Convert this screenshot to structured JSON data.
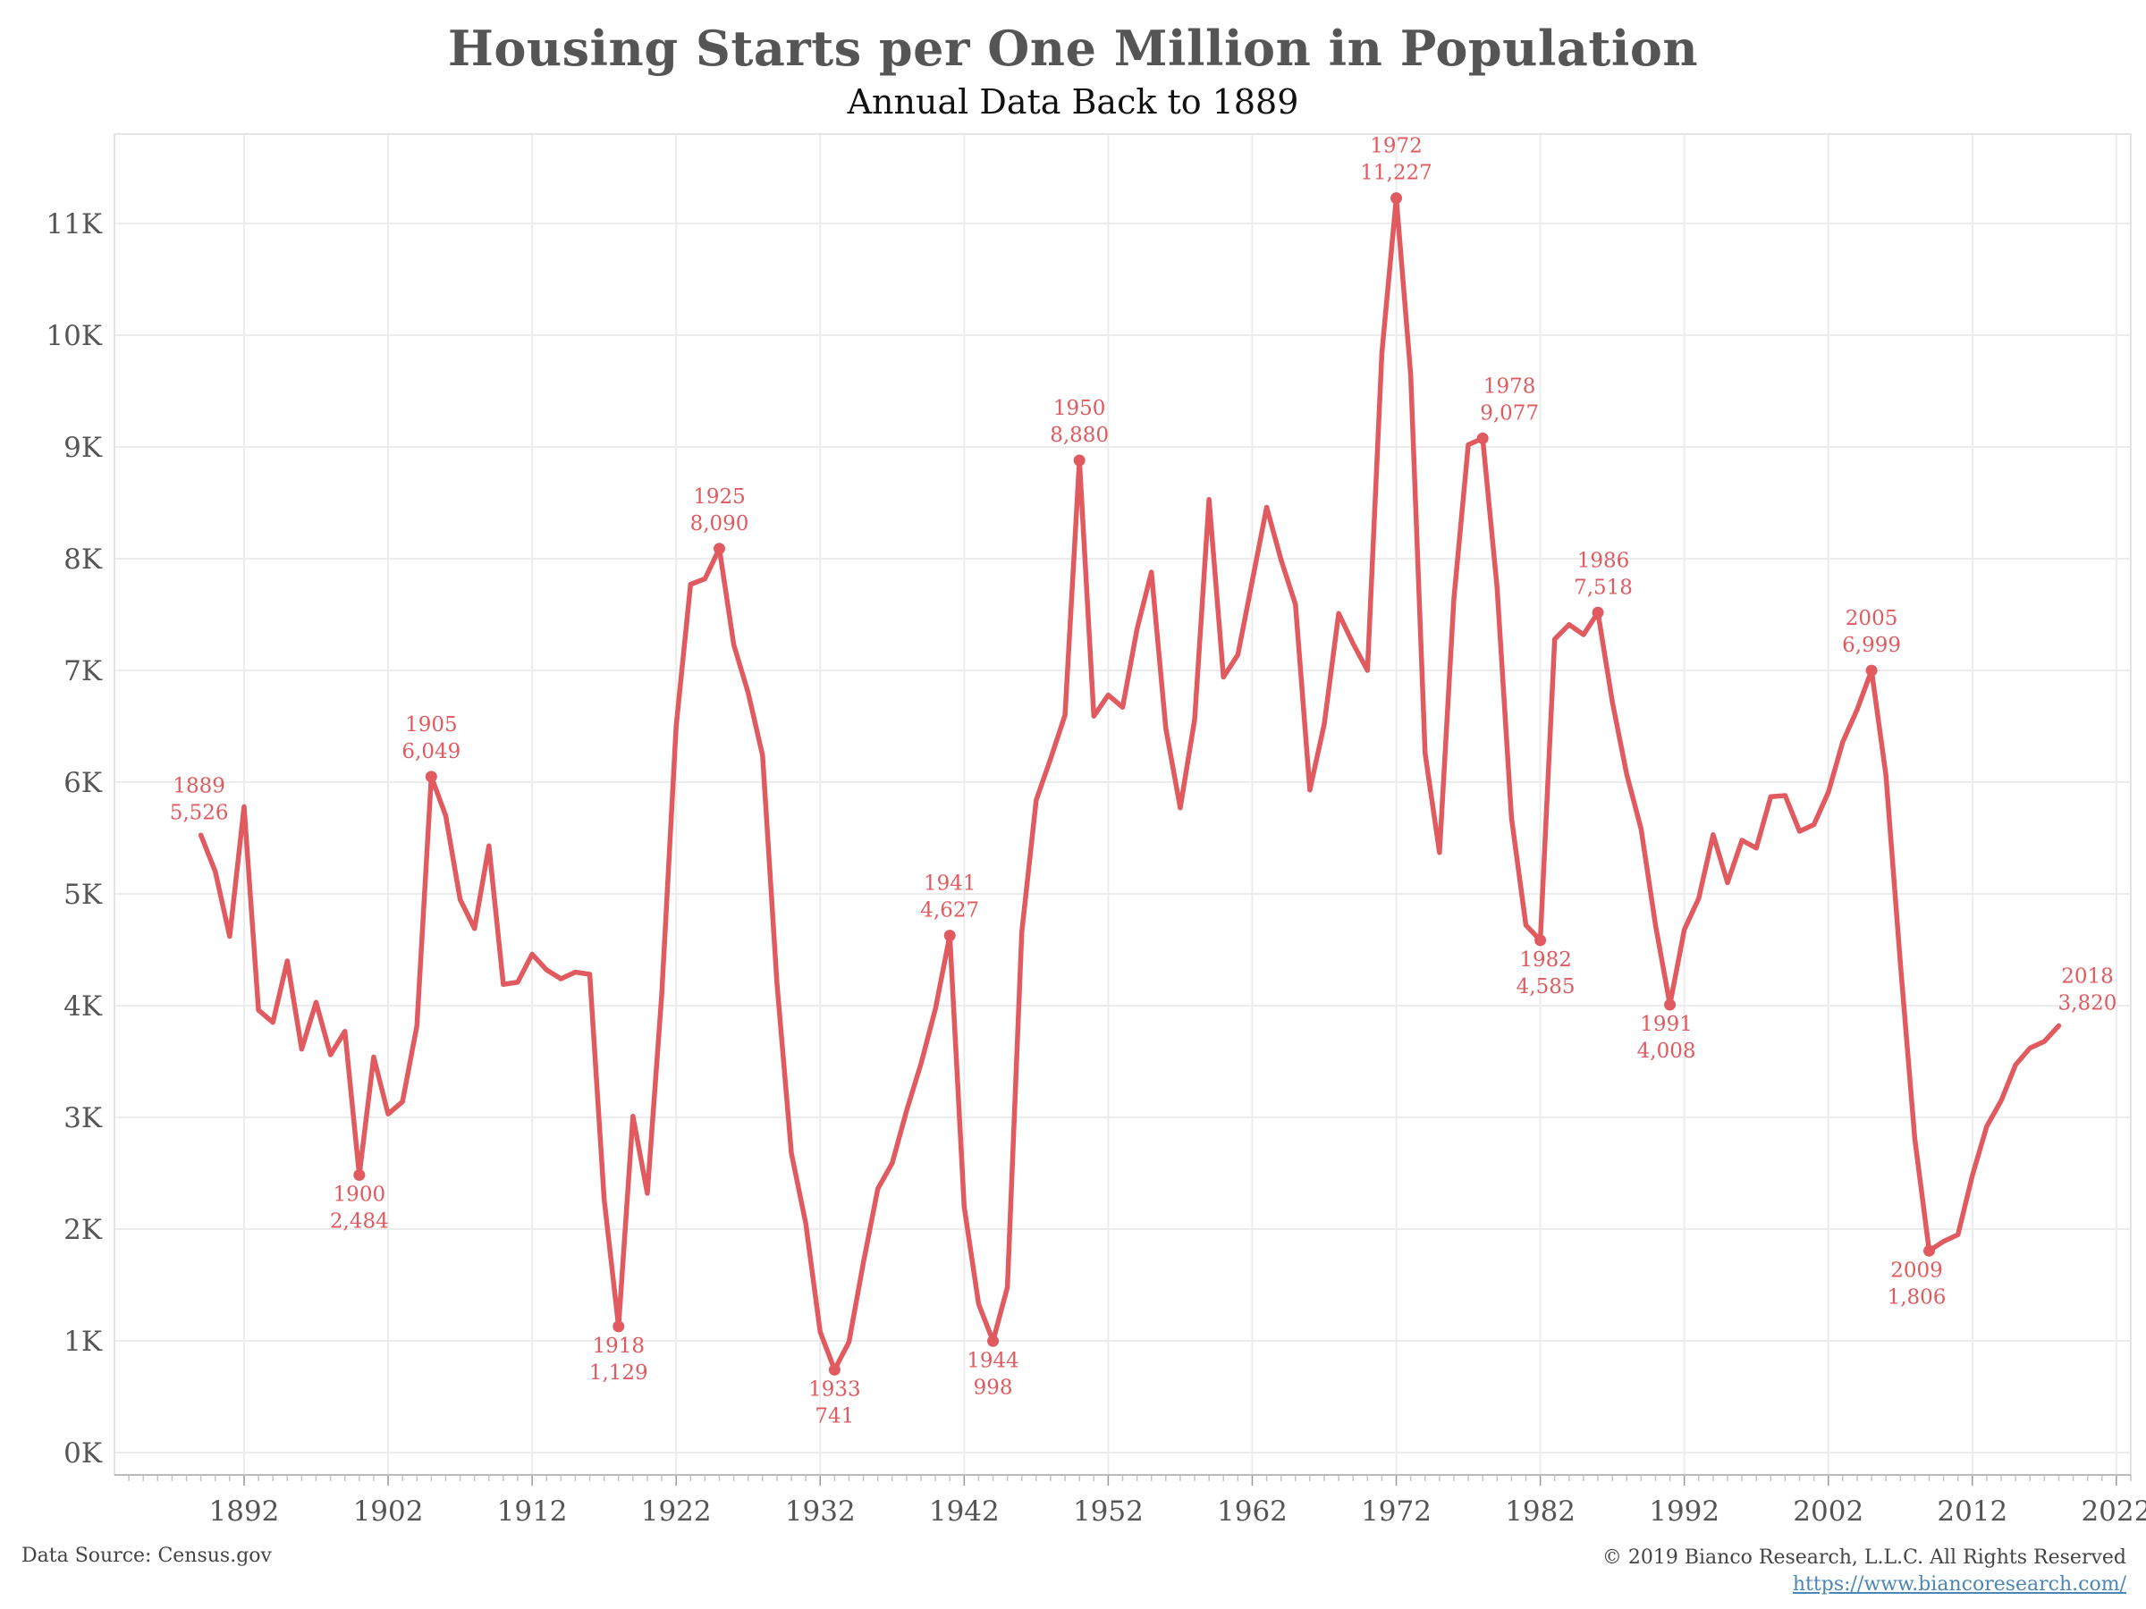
{
  "chart_data": {
    "type": "line",
    "title": "Housing Starts per One Million in Population",
    "subtitle": "Annual Data Back to 1889",
    "xlabel": "",
    "ylabel": "",
    "xlim": [
      1883,
      2023
    ],
    "ylim": [
      -200,
      11800
    ],
    "y_ticks": [
      0,
      1000,
      2000,
      3000,
      4000,
      5000,
      6000,
      7000,
      8000,
      9000,
      10000,
      11000
    ],
    "y_tick_labels": [
      "0K",
      "1K",
      "2K",
      "3K",
      "4K",
      "5K",
      "6K",
      "7K",
      "8K",
      "9K",
      "10K",
      "11K"
    ],
    "x_ticks": [
      1892,
      1902,
      1912,
      1922,
      1932,
      1942,
      1952,
      1962,
      1972,
      1982,
      1992,
      2002,
      2012,
      2022
    ],
    "x_tick_labels": [
      "1892",
      "1902",
      "1912",
      "1922",
      "1932",
      "1942",
      "1952",
      "1962",
      "1972",
      "1982",
      "1992",
      "2002",
      "2012",
      "2022"
    ],
    "grid": true,
    "line_color": "#e05a5f",
    "x": [
      1889,
      1890,
      1891,
      1892,
      1893,
      1894,
      1895,
      1896,
      1897,
      1898,
      1899,
      1900,
      1901,
      1902,
      1903,
      1904,
      1905,
      1906,
      1907,
      1908,
      1909,
      1910,
      1911,
      1912,
      1913,
      1914,
      1915,
      1916,
      1917,
      1918,
      1919,
      1920,
      1921,
      1922,
      1923,
      1924,
      1925,
      1926,
      1927,
      1928,
      1929,
      1930,
      1931,
      1932,
      1933,
      1934,
      1935,
      1936,
      1937,
      1938,
      1939,
      1940,
      1941,
      1942,
      1943,
      1944,
      1945,
      1946,
      1947,
      1948,
      1949,
      1950,
      1951,
      1952,
      1953,
      1954,
      1955,
      1956,
      1957,
      1958,
      1959,
      1960,
      1961,
      1962,
      1963,
      1964,
      1965,
      1966,
      1967,
      1968,
      1969,
      1970,
      1971,
      1972,
      1973,
      1974,
      1975,
      1976,
      1977,
      1978,
      1979,
      1980,
      1981,
      1982,
      1983,
      1984,
      1985,
      1986,
      1987,
      1988,
      1989,
      1990,
      1991,
      1992,
      1993,
      1994,
      1995,
      1996,
      1997,
      1998,
      1999,
      2000,
      2001,
      2002,
      2003,
      2004,
      2005,
      2006,
      2007,
      2008,
      2009,
      2010,
      2011,
      2012,
      2013,
      2014,
      2015,
      2016,
      2017,
      2018
    ],
    "values": [
      5526,
      5200,
      4620,
      5780,
      3960,
      3850,
      4400,
      3610,
      4030,
      3560,
      3770,
      2484,
      3540,
      3030,
      3140,
      3820,
      6049,
      5700,
      4950,
      4690,
      5430,
      4190,
      4210,
      4460,
      4320,
      4240,
      4300,
      4280,
      2270,
      1129,
      3010,
      2320,
      4100,
      6500,
      7770,
      7820,
      8090,
      7230,
      6800,
      6240,
      4200,
      2680,
      2050,
      1080,
      741,
      990,
      1700,
      2360,
      2590,
      3060,
      3480,
      3970,
      4627,
      2200,
      1330,
      998,
      1480,
      4660,
      5840,
      6210,
      6600,
      8880,
      6590,
      6780,
      6670,
      7370,
      7880,
      6480,
      5770,
      6560,
      8530,
      6940,
      7140,
      7800,
      8460,
      7990,
      7590,
      5930,
      6520,
      7510,
      7240,
      7000,
      9840,
      11227,
      9650,
      6260,
      5370,
      7640,
      9020,
      9077,
      7740,
      5680,
      4720,
      4585,
      7280,
      7410,
      7320,
      7518,
      6720,
      6070,
      5580,
      4720,
      4008,
      4680,
      4960,
      5530,
      5100,
      5480,
      5410,
      5870,
      5880,
      5560,
      5620,
      5910,
      6360,
      6650,
      6999,
      6060,
      4380,
      2810,
      1806,
      1890,
      1950,
      2480,
      2920,
      3150,
      3470,
      3620,
      3680,
      3820
    ],
    "annotations": [
      {
        "year": "1889",
        "value": "5,526"
      },
      {
        "year": "1900",
        "value": "2,484"
      },
      {
        "year": "1905",
        "value": "6,049"
      },
      {
        "year": "1918",
        "value": "1,129"
      },
      {
        "year": "1925",
        "value": "8,090"
      },
      {
        "year": "1933",
        "value": "741"
      },
      {
        "year": "1941",
        "value": "4,627"
      },
      {
        "year": "1944",
        "value": "998"
      },
      {
        "year": "1950",
        "value": "8,880"
      },
      {
        "year": "1972",
        "value": "11,227"
      },
      {
        "year": "1978",
        "value": "9,077"
      },
      {
        "year": "1982",
        "value": "4,585"
      },
      {
        "year": "1986",
        "value": "7,518"
      },
      {
        "year": "1991",
        "value": "4,008"
      },
      {
        "year": "2005",
        "value": "6,999"
      },
      {
        "year": "2009",
        "value": "1,806"
      },
      {
        "year": "2018",
        "value": "3,820"
      }
    ]
  },
  "footer": {
    "source": "Data Source: Census.gov",
    "copyright": "© 2019 Bianco Research, L.L.C. All Rights Reserved",
    "link": "https://www.biancoresearch.com/"
  }
}
